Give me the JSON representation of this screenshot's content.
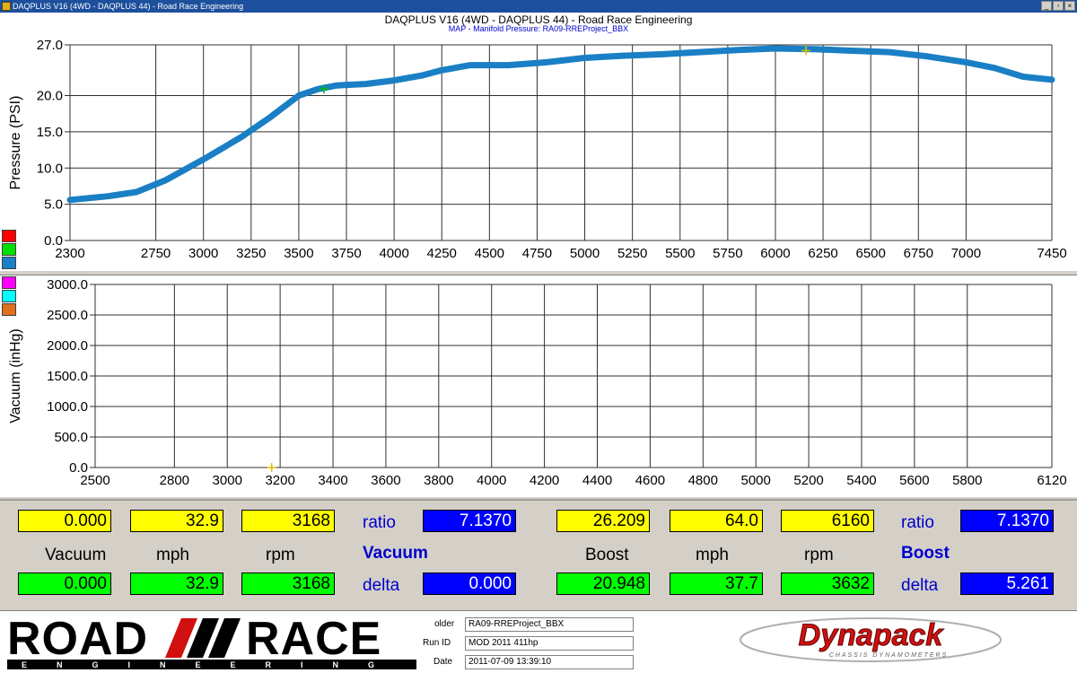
{
  "window": {
    "title": "DAQPLUS V16 (4WD - DAQPLUS 44) - Road Race Engineering",
    "controls": [
      "_",
      "▫",
      "×"
    ]
  },
  "chart": {
    "title": "DAQPLUS V16 (4WD - DAQPLUS 44) - Road Race Engineering",
    "subtitle": "MAP - Manifold Pressure: RA09-RREProject_BBX",
    "legend_colors_top": [
      "#ff0000",
      "#00e000",
      "#1a7fc4"
    ],
    "legend_colors_bottom": [
      "#ff00ff",
      "#00ffff",
      "#e07020"
    ]
  },
  "chart_data": [
    {
      "type": "line",
      "ylabel": "Pressure (PSI)",
      "xlabel": "",
      "xlim": [
        2300,
        7450
      ],
      "ylim": [
        0,
        27
      ],
      "x_ticks": [
        2300,
        2750,
        3000,
        3250,
        3500,
        3750,
        4000,
        4250,
        4500,
        4750,
        5000,
        5250,
        5500,
        5750,
        6000,
        6250,
        6500,
        6750,
        7000,
        7450
      ],
      "y_ticks": [
        "0.0",
        "5.0",
        "10.0",
        "15.0",
        "20.0",
        "27.0"
      ],
      "grid": true,
      "series": [
        {
          "color": "#1a7fc4",
          "x": [
            2300,
            2500,
            2650,
            2800,
            3000,
            3200,
            3350,
            3500,
            3600,
            3700,
            3850,
            4000,
            4150,
            4250,
            4400,
            4600,
            4800,
            5000,
            5200,
            5400,
            5600,
            5800,
            6000,
            6200,
            6400,
            6600,
            6800,
            7000,
            7150,
            7300,
            7450
          ],
          "y": [
            5.6,
            6.1,
            6.7,
            8.3,
            11.2,
            14.3,
            17.0,
            20.0,
            20.9,
            21.4,
            21.6,
            22.1,
            22.8,
            23.5,
            24.2,
            24.2,
            24.6,
            25.2,
            25.5,
            25.7,
            26.0,
            26.3,
            26.5,
            26.4,
            26.2,
            26.0,
            25.4,
            24.6,
            23.8,
            22.6,
            22.2
          ]
        }
      ],
      "markers": [
        {
          "x": 3632,
          "y": 20.9,
          "color": "#00c000"
        },
        {
          "x": 6160,
          "y": 26.2,
          "color": "#e0c000"
        }
      ]
    },
    {
      "type": "line",
      "ylabel": "Vacuum (inHg)",
      "xlabel": "",
      "xlim": [
        2500,
        6120
      ],
      "ylim": [
        0,
        3000
      ],
      "x_ticks": [
        2500,
        2800,
        3000,
        3200,
        3400,
        3600,
        3800,
        4000,
        4200,
        4400,
        4600,
        4800,
        5000,
        5200,
        5400,
        5600,
        5800,
        6120
      ],
      "y_ticks": [
        "0.0",
        "500.0",
        "1000.0",
        "1500.0",
        "2000.0",
        "2500.0",
        "3000.0"
      ],
      "grid": true,
      "series": [],
      "markers": [
        {
          "x": 3168,
          "y": 0,
          "color": "#e0c000"
        }
      ]
    }
  ],
  "readout": {
    "vacuum": {
      "cursor_values": [
        "0.000",
        "32.9",
        "3168"
      ],
      "labels": [
        "Vacuum",
        "mph",
        "rpm"
      ],
      "peak_values": [
        "0.000",
        "32.9",
        "3168"
      ],
      "ratio_label": "ratio",
      "ratio_value": "7.1370",
      "title": "Vacuum",
      "delta_label": "delta",
      "delta_value": "0.000"
    },
    "boost": {
      "cursor_values": [
        "26.209",
        "64.0",
        "6160"
      ],
      "labels": [
        "Boost",
        "mph",
        "rpm"
      ],
      "peak_values": [
        "20.948",
        "37.7",
        "3632"
      ],
      "ratio_label": "ratio",
      "ratio_value": "7.1370",
      "title": "Boost",
      "delta_label": "delta",
      "delta_value": "5.261"
    }
  },
  "footer": {
    "logo_text": "ROAD//RACE",
    "logo_subtext": "ENGINEERING",
    "folder_label": "older",
    "folder_value": "RA09-RREProject_BBX",
    "runid_label": "Run ID",
    "runid_value": "MOD 2011 411hp",
    "date_label": "Date",
    "date_value": "2011-07-09 13:39:10",
    "dyno_brand": "Dynapack",
    "dyno_sub": "CHASSIS DYNAMOMETERS"
  }
}
